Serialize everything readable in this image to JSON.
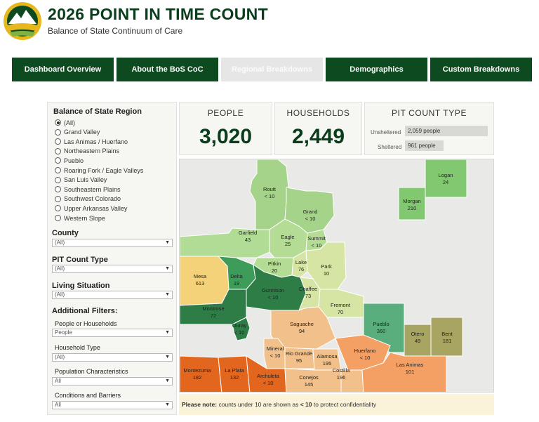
{
  "header": {
    "title": "2026 POINT IN TIME COUNT",
    "subtitle": "Balance of State Continuum of Care"
  },
  "nav": [
    {
      "label": "Dashboard Overview",
      "active": false
    },
    {
      "label": "About the BoS CoC",
      "active": false
    },
    {
      "label": "Regional Breakdowns",
      "active": true
    },
    {
      "label": "Demographics",
      "active": false
    },
    {
      "label": "Custom Breakdowns",
      "active": false
    }
  ],
  "filters": {
    "region_title": "Balance of State Region",
    "regions": [
      "(All)",
      "Grand Valley",
      "Las Animas / Huerfano",
      "Northeastern Plains",
      "Pueblo",
      "Roaring Fork / Eagle Valleys",
      "San Luis Valley",
      "Southeastern Plains",
      "Southwest Colorado",
      "Upper Arkansas Valley",
      "Western Slope"
    ],
    "county_title": "County",
    "county_value": "(All)",
    "pit_type_title": "PIT Count Type",
    "pit_type_value": "(All)",
    "living_title": "Living Situation",
    "living_value": "(All)",
    "additional_title": "Additional Filters:",
    "people_hh_label": "People or Households",
    "people_hh_value": "People",
    "household_type_label": "Household Type",
    "household_type_value": "(All)",
    "population_label": "Population Characteristics",
    "population_value": "All",
    "conditions_label": "Conditions and Barriers",
    "conditions_value": "All"
  },
  "cards": {
    "people_label": "PEOPLE",
    "people_value": "3,020",
    "households_label": "HOUSEHOLDS",
    "households_value": "2,449",
    "pit_type_label": "PIT COUNT TYPE",
    "unsheltered_label": "Unsheltered",
    "unsheltered_value": "2,059 people",
    "unsheltered_count": 2059,
    "sheltered_label": "Sheltered",
    "sheltered_value": "961 people",
    "sheltered_count": 961
  },
  "counties": [
    {
      "name": "Routt",
      "value": "< 10"
    },
    {
      "name": "Grand",
      "value": "< 10"
    },
    {
      "name": "Logan",
      "value": "24"
    },
    {
      "name": "Morgan",
      "value": "210"
    },
    {
      "name": "Garfield",
      "value": "43"
    },
    {
      "name": "Eagle",
      "value": "25"
    },
    {
      "name": "Summit",
      "value": "< 10"
    },
    {
      "name": "Pitkin",
      "value": "20"
    },
    {
      "name": "Lake",
      "value": "76"
    },
    {
      "name": "Park",
      "value": "10"
    },
    {
      "name": "Mesa",
      "value": "613"
    },
    {
      "name": "Delta",
      "value": "19"
    },
    {
      "name": "Gunnison",
      "value": "< 10"
    },
    {
      "name": "Chaffee",
      "value": "73"
    },
    {
      "name": "Fremont",
      "value": "70"
    },
    {
      "name": "Montrose",
      "value": "72"
    },
    {
      "name": "Ouray",
      "value": "< 10"
    },
    {
      "name": "Saguache",
      "value": "94"
    },
    {
      "name": "Pueblo",
      "value": "360"
    },
    {
      "name": "Otero",
      "value": "49"
    },
    {
      "name": "Bent",
      "value": "181"
    },
    {
      "name": "Mineral",
      "value": "< 10"
    },
    {
      "name": "Rio Grande",
      "value": "95"
    },
    {
      "name": "Alamosa",
      "value": "195"
    },
    {
      "name": "Huerfano",
      "value": "< 10"
    },
    {
      "name": "Costilla",
      "value": "196"
    },
    {
      "name": "Las Animas",
      "value": "101"
    },
    {
      "name": "Montezuma",
      "value": "182"
    },
    {
      "name": "La Plata",
      "value": "132"
    },
    {
      "name": "Archuleta",
      "value": "< 10"
    },
    {
      "name": "Conejos",
      "value": "145"
    }
  ],
  "colors": {
    "brand_green": "#0d4a1f",
    "active_tab": "#e6e6e6",
    "note_bg": "#fbf3d9"
  },
  "note": {
    "prefix": "Please note:",
    "text": " counts under 10 are shown as ",
    "emph": "< 10",
    "suffix": " to protect confidentiality"
  }
}
